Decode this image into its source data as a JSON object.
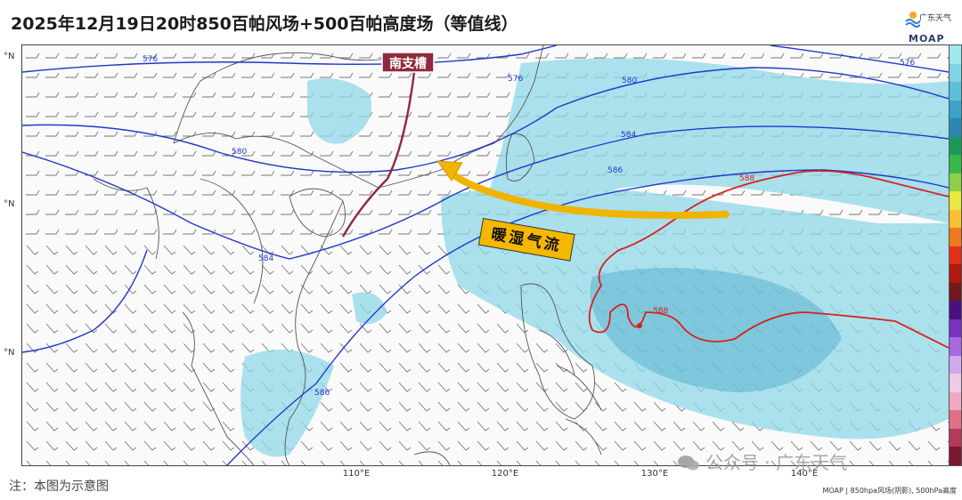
{
  "title": "2025年12月19日20时850百帕风场+500百帕高度场（等值线）",
  "brand": {
    "name_cn": "广东天气",
    "name_en": "MOAP",
    "logo_icon": "weather-logo-icon"
  },
  "map": {
    "lat_labels": [
      "°N",
      "°N",
      "°N"
    ],
    "lon_labels": [
      "110°E",
      "120°E",
      "130°E",
      "140°E"
    ],
    "contour_labels": {
      "blue": [
        "576",
        "576",
        "576",
        "580",
        "580",
        "584",
        "584",
        "586",
        "586"
      ],
      "red": [
        "588",
        "588"
      ]
    },
    "annotations": {
      "trough_label": "南支槽",
      "flow_label": "暖湿气流"
    },
    "colors": {
      "contour_blue": "#2238c8",
      "contour_red": "#d8201c",
      "trough_line": "#8e2a3c",
      "flow_arrow": "#f0b400",
      "moisture_shade": "#8fd8e8"
    }
  },
  "colorbar": {
    "colors": [
      "#9ee8ee",
      "#7fd4e4",
      "#5cc0d8",
      "#3aa4c8",
      "#2a88b2",
      "#1a9a5a",
      "#38b848",
      "#8ccf48",
      "#e8e840",
      "#f8c030",
      "#f07820",
      "#e03018",
      "#b01810",
      "#6e1a1a",
      "#4a1080",
      "#7a30c0",
      "#a868e0",
      "#d0a8f0",
      "#f0c8e8",
      "#f0a8c0",
      "#e07088",
      "#b83858",
      "#7a1830"
    ]
  },
  "footer": {
    "note": "注：本图为示意图",
    "credit": "MOAP | 850hpa风场(阴影), 500hPa高度",
    "watermark": "公众号 · 广东天气"
  }
}
